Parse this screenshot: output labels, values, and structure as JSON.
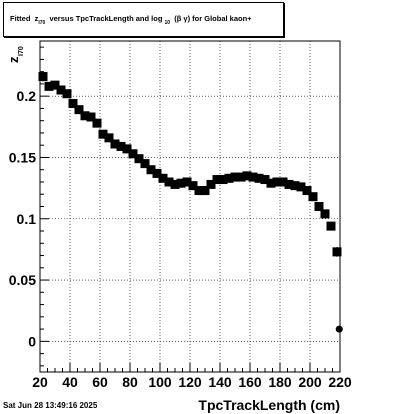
{
  "title": {
    "part1": "Fitted",
    "z": "z",
    "z_sub": "I70",
    "part2": "versus TpcTrackLength and log",
    "log_sub": "10",
    "part3": "(β γ) for Global kaon+"
  },
  "footer_date": "Sat Jun 28 13:49:16 2025",
  "chart_data": {
    "type": "scatter",
    "title": "Fitted z_I70 versus TpcTrackLength and log_10(βγ) for Global kaon+",
    "xlabel": "TpcTrackLength (cm)",
    "ylabel": "z",
    "ylabel_sub": "I70",
    "xlim": [
      20,
      220
    ],
    "ylim": [
      -0.025,
      0.245
    ],
    "grid": true,
    "x_ticks": [
      20,
      40,
      60,
      80,
      100,
      120,
      140,
      160,
      180,
      200,
      220
    ],
    "y_ticks": [
      0,
      0.05,
      0.1,
      0.15,
      0.2
    ],
    "y_tick_labels": [
      "0",
      "0.05",
      "0.1",
      "0.15",
      "0.2"
    ],
    "series": [
      {
        "x": [
          22,
          26,
          30,
          34,
          38,
          42,
          46,
          50,
          54,
          58,
          62,
          66,
          70,
          74,
          78,
          82,
          86,
          90,
          94,
          98,
          102,
          106,
          110,
          114,
          118,
          122,
          126,
          130,
          134,
          138,
          142,
          146,
          150,
          154,
          158,
          162,
          166,
          170,
          174,
          178,
          182,
          186,
          190,
          194,
          198,
          202,
          206,
          210,
          214,
          218
        ],
        "y": [
          0.216,
          0.208,
          0.209,
          0.205,
          0.202,
          0.194,
          0.189,
          0.184,
          0.183,
          0.178,
          0.169,
          0.166,
          0.161,
          0.159,
          0.157,
          0.153,
          0.149,
          0.145,
          0.14,
          0.137,
          0.133,
          0.13,
          0.128,
          0.129,
          0.13,
          0.127,
          0.123,
          0.123,
          0.128,
          0.132,
          0.132,
          0.133,
          0.134,
          0.134,
          0.135,
          0.134,
          0.133,
          0.132,
          0.129,
          0.13,
          0.13,
          0.128,
          0.127,
          0.126,
          0.123,
          0.118,
          0.11,
          0.104,
          0.094,
          0.073
        ],
        "error": [
          0.004,
          0.003,
          0.003,
          0.003,
          0.003,
          0.003,
          0.003,
          0.003,
          0.003,
          0.003,
          0.003,
          0.003,
          0.003,
          0.003,
          0.003,
          0.003,
          0.003,
          0.003,
          0.003,
          0.003,
          0.003,
          0.003,
          0.003,
          0.003,
          0.003,
          0.003,
          0.003,
          0.003,
          0.003,
          0.003,
          0.003,
          0.003,
          0.003,
          0.003,
          0.003,
          0.003,
          0.003,
          0.003,
          0.003,
          0.003,
          0.003,
          0.003,
          0.003,
          0.003,
          0.003,
          0.003,
          0.003,
          0.003,
          0.003,
          0.004
        ]
      },
      {
        "x": [
          219.5
        ],
        "y": [
          0.01
        ]
      }
    ]
  }
}
